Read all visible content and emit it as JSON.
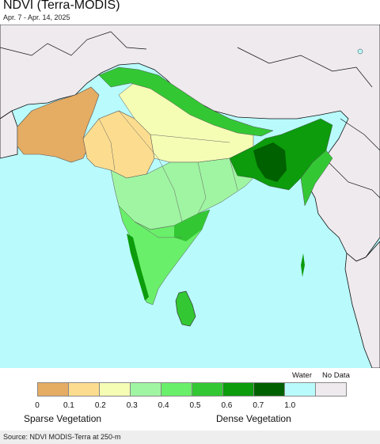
{
  "header": {
    "title": "NDVI (Terra-MODIS)",
    "date_range": "Apr. 7 - Apr. 14, 2025"
  },
  "legend": {
    "water_label": "Water",
    "nodata_label": "No Data",
    "swatches": [
      {
        "color": "#e5ac63"
      },
      {
        "color": "#fcdd8f"
      },
      {
        "color": "#f5fcb4"
      },
      {
        "color": "#a0f5a2"
      },
      {
        "color": "#6aef6a"
      },
      {
        "color": "#33c833"
      },
      {
        "color": "#0c9c0c"
      },
      {
        "color": "#006100"
      },
      {
        "color": "#b9fbfd"
      },
      {
        "color": "#eeeaee"
      }
    ],
    "ticks": [
      "0",
      "0.1",
      "0.2",
      "0.3",
      "0.4",
      "0.5",
      "0.6",
      "0.7",
      "1.0"
    ],
    "low_caption": "Sparse Vegetation",
    "high_caption": "Dense Vegetation"
  },
  "footer": {
    "source": "Source: NDVI MODIS-Terra at 250-m"
  }
}
